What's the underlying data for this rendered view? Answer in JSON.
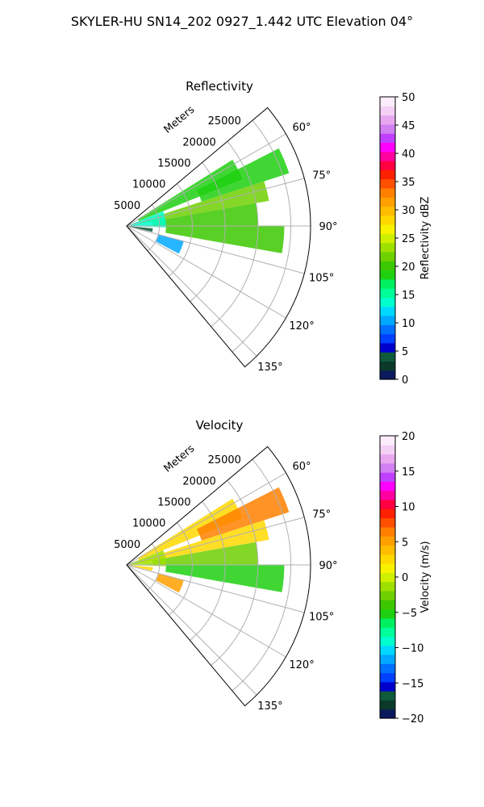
{
  "title": "SKYLER-HU  SN14_202  0927_1.442 UTC Elevation 04°",
  "range_unit_label": "Meters",
  "chart_data": [
    {
      "type": "heatmap",
      "subtype": "polar-sector",
      "title": "Reflectivity",
      "theta_range_deg": [
        50,
        140
      ],
      "theta_ticks_deg": [
        60,
        75,
        90,
        105,
        120,
        135
      ],
      "theta_tick_labels": [
        "60°",
        "75°",
        "90°",
        "105°",
        "120°",
        "135°"
      ],
      "r_max_m": 28000,
      "r_ticks_m": [
        5000,
        10000,
        15000,
        20000,
        25000
      ],
      "r_tick_labels": [
        "5000",
        "10000",
        "15000",
        "20000",
        "25000"
      ],
      "grid": true,
      "colorbar": {
        "label": "Reflectivity dBZ",
        "range": [
          0,
          50
        ],
        "ticks": [
          0,
          5,
          10,
          15,
          20,
          25,
          30,
          35,
          40,
          45,
          50
        ],
        "tick_labels": [
          "0",
          "5",
          "10",
          "15",
          "20",
          "25",
          "30",
          "35",
          "40",
          "45",
          "50"
        ],
        "colors": [
          "#0a1a5c",
          "#0b3a2a",
          "#0e5a3a",
          "#0000cc",
          "#0040ff",
          "#0070ff",
          "#00a8ff",
          "#00d8ff",
          "#00ffcc",
          "#00ff99",
          "#00f060",
          "#1fd010",
          "#3cc800",
          "#6ed000",
          "#9ee000",
          "#cff000",
          "#f8f200",
          "#ffd800",
          "#ffbc00",
          "#ffa000",
          "#ff8000",
          "#ff5000",
          "#ff2000",
          "#ff0040",
          "#ff00a0",
          "#ff00ff",
          "#c040ff",
          "#d080f0",
          "#e8a8f0",
          "#f4d0f4",
          "#fcecfc"
        ]
      },
      "echo_regions": [
        {
          "theta_deg": [
            58,
            68
          ],
          "r_m": [
            2000,
            19000
          ],
          "value": 19
        },
        {
          "theta_deg": [
            63,
            72
          ],
          "r_m": [
            12000,
            26000
          ],
          "value": 18
        },
        {
          "theta_deg": [
            72,
            80
          ],
          "r_m": [
            2000,
            22000
          ],
          "value": 22
        },
        {
          "theta_deg": [
            80,
            90
          ],
          "r_m": [
            4000,
            20000
          ],
          "value": 20
        },
        {
          "theta_deg": [
            90,
            100
          ],
          "r_m": [
            6000,
            24000
          ],
          "value": 20
        },
        {
          "theta_deg": [
            68,
            92
          ],
          "r_m": [
            500,
            6000
          ],
          "value": 13
        },
        {
          "theta_deg": [
            95,
            103
          ],
          "r_m": [
            500,
            4000
          ],
          "value": 4
        },
        {
          "theta_deg": [
            105,
            118
          ],
          "r_m": [
            5000,
            9000
          ],
          "value": 11
        }
      ]
    },
    {
      "type": "heatmap",
      "subtype": "polar-sector",
      "title": "Velocity",
      "theta_range_deg": [
        50,
        140
      ],
      "theta_ticks_deg": [
        60,
        75,
        90,
        105,
        120,
        135
      ],
      "theta_tick_labels": [
        "60°",
        "75°",
        "90°",
        "105°",
        "120°",
        "135°"
      ],
      "r_max_m": 28000,
      "r_ticks_m": [
        5000,
        10000,
        15000,
        20000,
        25000
      ],
      "r_tick_labels": [
        "5000",
        "10000",
        "15000",
        "20000",
        "25000"
      ],
      "grid": true,
      "colorbar": {
        "label": "Velocity (m/s)",
        "range": [
          -20,
          20
        ],
        "ticks": [
          -20,
          -15,
          -10,
          -5,
          0,
          5,
          10,
          15,
          20
        ],
        "tick_labels": [
          "−20",
          "−15",
          "−10",
          "−5",
          "0",
          "5",
          "10",
          "15",
          "20"
        ],
        "colors": [
          "#0a1a5c",
          "#0b3a2a",
          "#0e5a3a",
          "#0000cc",
          "#0040ff",
          "#0070ff",
          "#00a8ff",
          "#00d8ff",
          "#00ffcc",
          "#00ff99",
          "#00f060",
          "#1fd010",
          "#3cc800",
          "#6ed000",
          "#9ee000",
          "#cff000",
          "#f8f200",
          "#ffd800",
          "#ffbc00",
          "#ffa000",
          "#ff8000",
          "#ff5000",
          "#ff2000",
          "#ff0040",
          "#ff00a0",
          "#ff00ff",
          "#c040ff",
          "#d080f0",
          "#e8a8f0",
          "#f4d0f4",
          "#fcecfc"
        ]
      },
      "echo_regions": [
        {
          "theta_deg": [
            58,
            68
          ],
          "r_m": [
            2000,
            19000
          ],
          "value": 3
        },
        {
          "theta_deg": [
            63,
            72
          ],
          "r_m": [
            12000,
            26000
          ],
          "value": 7
        },
        {
          "theta_deg": [
            72,
            80
          ],
          "r_m": [
            2000,
            22000
          ],
          "value": 2
        },
        {
          "theta_deg": [
            80,
            90
          ],
          "r_m": [
            4000,
            20000
          ],
          "value": -2
        },
        {
          "theta_deg": [
            90,
            100
          ],
          "r_m": [
            6000,
            24000
          ],
          "value": -5
        },
        {
          "theta_deg": [
            68,
            92
          ],
          "r_m": [
            500,
            6000
          ],
          "value": -1
        },
        {
          "theta_deg": [
            95,
            103
          ],
          "r_m": [
            500,
            4000
          ],
          "value": 2
        },
        {
          "theta_deg": [
            105,
            118
          ],
          "r_m": [
            5000,
            9000
          ],
          "value": 5
        }
      ]
    }
  ]
}
